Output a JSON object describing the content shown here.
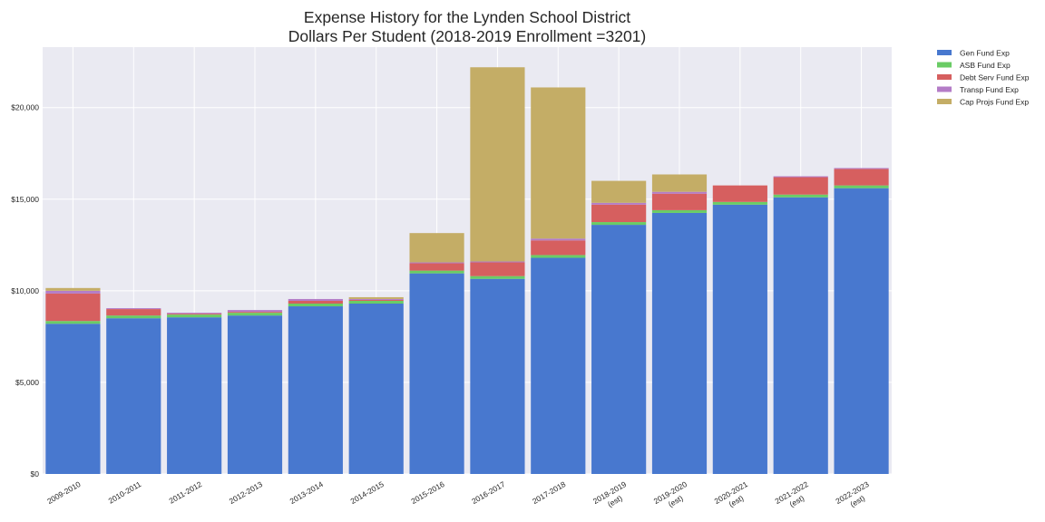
{
  "chart_data": {
    "type": "bar",
    "stacked": true,
    "title": "Expense History for the Lynden School District",
    "subtitle": "Dollars Per Student (2018-2019 Enrollment =3201)",
    "xlabel": "",
    "ylabel": "",
    "ylim": [
      0,
      23300
    ],
    "yticks": [
      0,
      5000,
      10000,
      15000,
      20000
    ],
    "ytick_labels": [
      "$0",
      "$5,000",
      "$10,000",
      "$15,000",
      "$20,000"
    ],
    "grid": true,
    "legend_position": "outside-top-right",
    "categories": [
      [
        "2009-2010"
      ],
      [
        "2010-2011"
      ],
      [
        "2011-2012"
      ],
      [
        "2012-2013"
      ],
      [
        "2013-2014"
      ],
      [
        "2014-2015"
      ],
      [
        "2015-2016"
      ],
      [
        "2016-2017"
      ],
      [
        "2017-2018"
      ],
      [
        "2018-2019",
        "(est)"
      ],
      [
        "2019-2020",
        "(est)"
      ],
      [
        "2020-2021",
        "(est)"
      ],
      [
        "2021-2022",
        "(est)"
      ],
      [
        "2022-2023",
        "(est)"
      ]
    ],
    "series": [
      {
        "name": "Gen Fund Exp",
        "color": "#4878cf",
        "values": [
          8200,
          8500,
          8550,
          8650,
          9150,
          9300,
          10950,
          10650,
          11800,
          13600,
          14250,
          14700,
          15100,
          15600
        ]
      },
      {
        "name": "ASB Fund Exp",
        "color": "#6acc65",
        "values": [
          150,
          150,
          150,
          150,
          150,
          150,
          150,
          150,
          150,
          150,
          150,
          150,
          150,
          150
        ]
      },
      {
        "name": "Debt Serv Fund Exp",
        "color": "#d65f5f",
        "values": [
          1500,
          350,
          50,
          50,
          150,
          50,
          400,
          750,
          800,
          950,
          900,
          900,
          950,
          900
        ]
      },
      {
        "name": "Transp Fund Exp",
        "color": "#b47cc7",
        "values": [
          150,
          50,
          50,
          100,
          100,
          50,
          50,
          50,
          100,
          100,
          100,
          0,
          50,
          50
        ]
      },
      {
        "name": "Cap Projs Fund Exp",
        "color": "#c4ad66",
        "values": [
          150,
          0,
          0,
          0,
          0,
          100,
          1600,
          10600,
          8250,
          1200,
          950,
          0,
          0,
          0
        ]
      }
    ]
  }
}
